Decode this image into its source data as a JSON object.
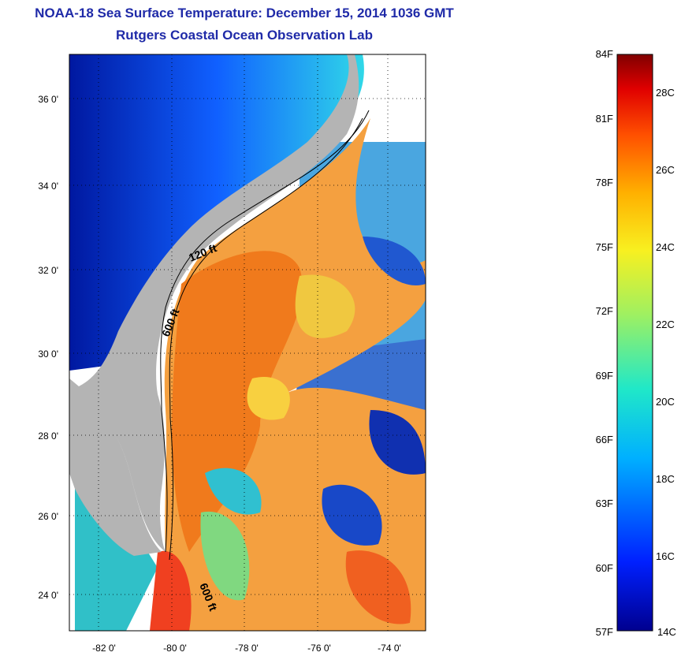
{
  "header": {
    "title": "NOAA-18 Sea Surface Temperature:  December 15, 2014 1036 GMT",
    "subtitle": "Rutgers Coastal Ocean Observation Lab"
  },
  "map": {
    "lat_ticks": [
      "36 0'",
      "34 0'",
      "32 0'",
      "30 0'",
      "28 0'",
      "26 0'",
      "24 0'"
    ],
    "lon_ticks": [
      "-82 0'",
      "-80 0'",
      "-78 0'",
      "-76 0'",
      "-74 0'"
    ],
    "contours": {
      "c120": "120 ft",
      "c600a": "600 ft",
      "c600b": "600 ft"
    },
    "colors": {
      "land": "#b4b4b4",
      "gulf_stream": "#f07a1c",
      "warm": "#f4a040",
      "cold": "#0a2aa0"
    }
  },
  "colorbar": {
    "fahrenheit": [
      "84F",
      "81F",
      "78F",
      "75F",
      "72F",
      "69F",
      "66F",
      "63F",
      "60F",
      "57F"
    ],
    "celsius": [
      "28C",
      "26C",
      "24C",
      "22C",
      "20C",
      "18C",
      "16C",
      "14C"
    ],
    "range_f": [
      57,
      84
    ],
    "range_c": [
      14,
      29
    ]
  }
}
